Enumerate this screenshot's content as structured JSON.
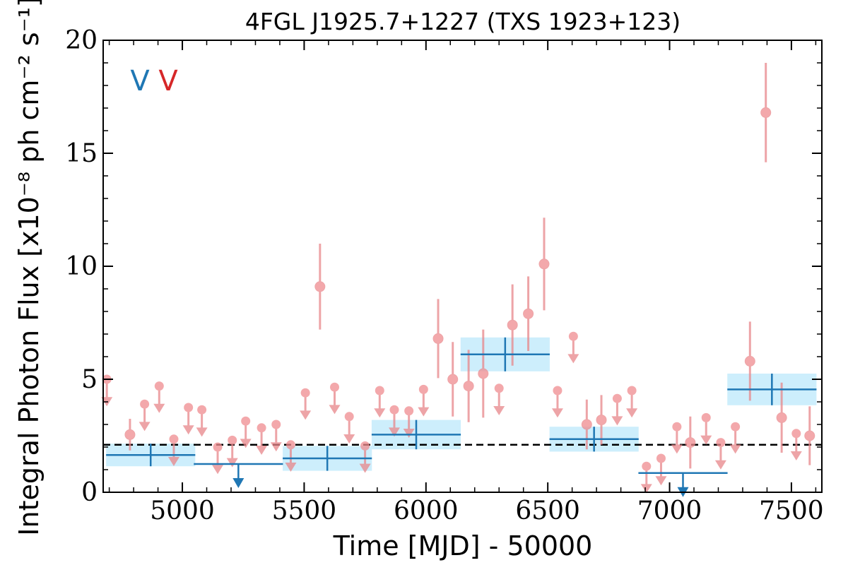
{
  "chart_data": {
    "type": "scatter",
    "title": "4FGL J1925.7+1227 (TXS 1923+123)",
    "xlabel": "Time [MJD] - 50000",
    "ylabel": "Integral Photon Flux [x10⁻⁸ ph cm⁻² s⁻¹]",
    "xlim": [
      4675,
      7625
    ],
    "ylim": [
      0,
      20
    ],
    "x_ticks": [
      5000,
      5500,
      6000,
      6500,
      7000,
      7500
    ],
    "y_ticks": [
      0,
      5,
      10,
      15,
      20
    ],
    "x_tick_labels": [
      "5000",
      "5500",
      "6000",
      "6500",
      "7000",
      "7500"
    ],
    "y_tick_labels": [
      "0",
      "5",
      "10",
      "15",
      "20"
    ],
    "legend": {
      "placement": "top-left",
      "entries": [
        {
          "label": "V",
          "color": "#1f77b4"
        },
        {
          "label": "V",
          "color": "#d62728"
        }
      ]
    },
    "reference_line": {
      "y": 2.1,
      "style": "dashed",
      "color": "#000000"
    },
    "colors": {
      "yearly": "#1f77b4",
      "yearly_band": "#cdeefc",
      "monthly": "#e8868a",
      "monthly_face": "#f08c8f"
    },
    "series": [
      {
        "binning": "yearly",
        "detections": [
          {
            "x": 4870,
            "y": 1.65,
            "xerr": 183,
            "yerr": 0.5
          },
          {
            "x": 5595,
            "y": 1.5,
            "xerr": 183,
            "yerr": 0.55
          },
          {
            "x": 5960,
            "y": 2.55,
            "xerr": 183,
            "yerr": 0.65
          },
          {
            "x": 6325,
            "y": 6.1,
            "xerr": 183,
            "yerr": 0.75
          },
          {
            "x": 6690,
            "y": 2.35,
            "xerr": 183,
            "yerr": 0.55
          },
          {
            "x": 7420,
            "y": 4.55,
            "xerr": 183,
            "yerr": 0.7
          }
        ],
        "upper_limits": [
          {
            "x": 5230,
            "y": 1.25,
            "xerr": 183
          },
          {
            "x": 7055,
            "y": 0.85,
            "xerr": 183
          }
        ]
      },
      {
        "binning": "monthly",
        "detections": [
          {
            "x": 4785,
            "y": 2.55,
            "yerr": 0.7
          },
          {
            "x": 5565,
            "y": 9.1,
            "yerr": 1.9
          },
          {
            "x": 6050,
            "y": 6.8,
            "yerr": 1.75
          },
          {
            "x": 6110,
            "y": 5.0,
            "yerr": 1.65
          },
          {
            "x": 6175,
            "y": 4.7,
            "yerr": 1.6
          },
          {
            "x": 6235,
            "y": 5.25,
            "yerr": 1.95
          },
          {
            "x": 6355,
            "y": 7.4,
            "yerr": 1.8
          },
          {
            "x": 6420,
            "y": 7.9,
            "yerr": 1.65
          },
          {
            "x": 6485,
            "y": 10.1,
            "yerr": 2.05
          },
          {
            "x": 6660,
            "y": 3.0,
            "yerr": 1.1
          },
          {
            "x": 6720,
            "y": 3.2,
            "yerr": 1.1
          },
          {
            "x": 7085,
            "y": 2.2,
            "yerr": 1.15
          },
          {
            "x": 7330,
            "y": 5.8,
            "yerr": 1.75
          },
          {
            "x": 7395,
            "y": 16.8,
            "yerr": 2.2
          },
          {
            "x": 7460,
            "y": 3.3,
            "yerr": 1.55
          },
          {
            "x": 7575,
            "y": 2.5,
            "yerr": 1.3
          }
        ],
        "upper_limits": [
          {
            "x": 4690,
            "y": 5.0
          },
          {
            "x": 4845,
            "y": 3.9
          },
          {
            "x": 4905,
            "y": 4.7
          },
          {
            "x": 4965,
            "y": 2.35
          },
          {
            "x": 5025,
            "y": 3.75
          },
          {
            "x": 5080,
            "y": 3.65
          },
          {
            "x": 5145,
            "y": 2.0
          },
          {
            "x": 5205,
            "y": 2.3
          },
          {
            "x": 5260,
            "y": 3.15
          },
          {
            "x": 5325,
            "y": 2.85
          },
          {
            "x": 5385,
            "y": 3.0
          },
          {
            "x": 5445,
            "y": 2.1
          },
          {
            "x": 5505,
            "y": 4.4
          },
          {
            "x": 5625,
            "y": 4.65
          },
          {
            "x": 5685,
            "y": 3.35
          },
          {
            "x": 5750,
            "y": 2.05
          },
          {
            "x": 5810,
            "y": 4.5
          },
          {
            "x": 5870,
            "y": 3.65
          },
          {
            "x": 5930,
            "y": 3.6
          },
          {
            "x": 5990,
            "y": 4.55
          },
          {
            "x": 6300,
            "y": 4.6
          },
          {
            "x": 6605,
            "y": 6.9
          },
          {
            "x": 6540,
            "y": 4.5
          },
          {
            "x": 6785,
            "y": 4.15
          },
          {
            "x": 6845,
            "y": 4.5
          },
          {
            "x": 6905,
            "y": 1.15
          },
          {
            "x": 6965,
            "y": 1.5
          },
          {
            "x": 7030,
            "y": 2.9
          },
          {
            "x": 7150,
            "y": 3.3
          },
          {
            "x": 7210,
            "y": 2.2
          },
          {
            "x": 7270,
            "y": 2.9
          },
          {
            "x": 7520,
            "y": 2.6
          }
        ]
      }
    ]
  }
}
